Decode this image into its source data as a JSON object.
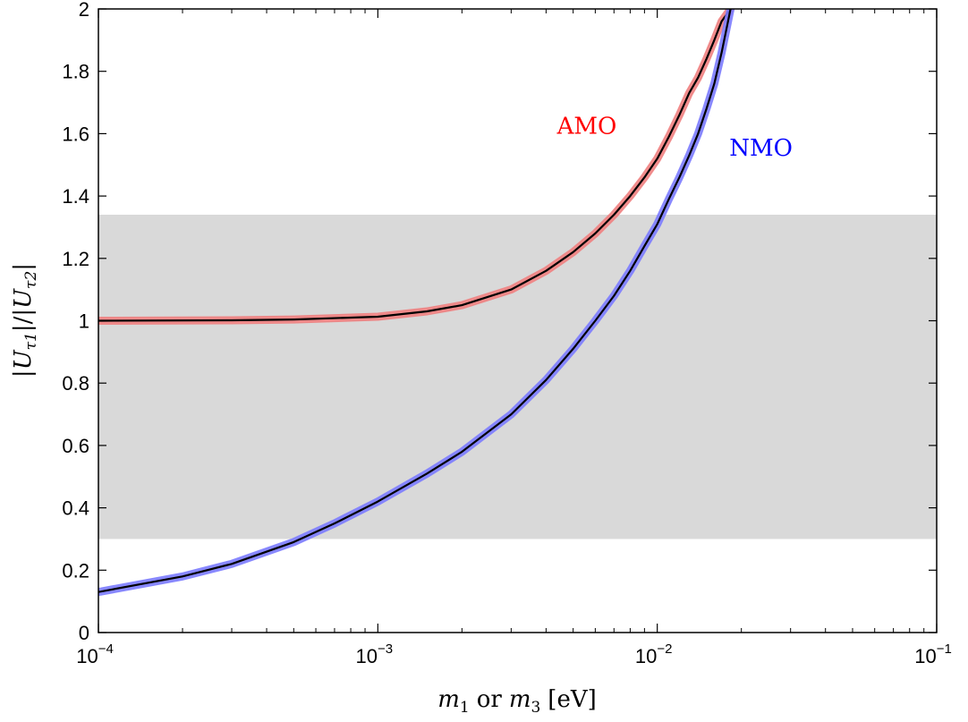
{
  "chart_data": {
    "type": "line",
    "title": "",
    "xlabel": "m_1 or m_3 [eV]",
    "xlabel_parts": {
      "var1": "m",
      "sub1": "1",
      "connector": "or",
      "var2": "m",
      "sub2": "3",
      "unit": "[eV]"
    },
    "ylabel": "|U_τ1|/|U_τ2|",
    "ylabel_parts": {
      "bar1": "|",
      "var1": "U",
      "sub1": "τ1",
      "mid": "|/|",
      "var2": "U",
      "sub2": "τ2",
      "bar2": "|"
    },
    "xscale": "log",
    "xlim": [
      0.0001,
      0.1
    ],
    "ylim": [
      0,
      2
    ],
    "x_ticks": [
      {
        "base": "10",
        "exp": "−4",
        "value": 0.0001
      },
      {
        "base": "10",
        "exp": "−3",
        "value": 0.001
      },
      {
        "base": "10",
        "exp": "−2",
        "value": 0.01
      },
      {
        "base": "10",
        "exp": "−1",
        "value": 0.1
      }
    ],
    "y_ticks": [
      "0",
      "0.2",
      "0.4",
      "0.6",
      "0.8",
      "1",
      "1.2",
      "1.4",
      "1.6",
      "1.8",
      "2"
    ],
    "grid": false,
    "shaded_band": {
      "y_min": 0.3,
      "y_max": 1.34,
      "color": "#d9d9d9"
    },
    "series": [
      {
        "name": "AMO",
        "color": "#e41a1c",
        "band_color": "#f08080",
        "x": [
          0.0001,
          0.0003,
          0.0005,
          0.001,
          0.0015,
          0.002,
          0.003,
          0.004,
          0.005,
          0.006,
          0.007,
          0.008,
          0.009,
          0.01,
          0.011,
          0.012,
          0.013,
          0.014,
          0.015,
          0.016,
          0.017,
          0.0183
        ],
        "y": [
          1.0,
          1.0015,
          1.004,
          1.013,
          1.03,
          1.05,
          1.1,
          1.16,
          1.22,
          1.28,
          1.34,
          1.4,
          1.46,
          1.52,
          1.59,
          1.66,
          1.73,
          1.78,
          1.84,
          1.9,
          1.96,
          2.0
        ]
      },
      {
        "name": "NMO",
        "color": "#2222ff",
        "band_color": "#7b7bff",
        "x": [
          0.0001,
          0.0002,
          0.0003,
          0.0005,
          0.0007,
          0.001,
          0.0015,
          0.002,
          0.003,
          0.004,
          0.005,
          0.006,
          0.007,
          0.008,
          0.009,
          0.01,
          0.011,
          0.012,
          0.013,
          0.014,
          0.015,
          0.016,
          0.017,
          0.0183
        ],
        "y": [
          0.13,
          0.18,
          0.22,
          0.29,
          0.35,
          0.42,
          0.51,
          0.58,
          0.7,
          0.81,
          0.91,
          1.0,
          1.08,
          1.16,
          1.24,
          1.31,
          1.39,
          1.46,
          1.53,
          1.6,
          1.68,
          1.76,
          1.86,
          2.0
        ]
      }
    ],
    "annotations": [
      {
        "text": "AMO",
        "color": "#ff0000",
        "x": 0.0056,
        "y": 1.6
      },
      {
        "text": "NMO",
        "color": "#0000ff",
        "x": 0.0235,
        "y": 1.53
      }
    ],
    "legend": "none"
  }
}
